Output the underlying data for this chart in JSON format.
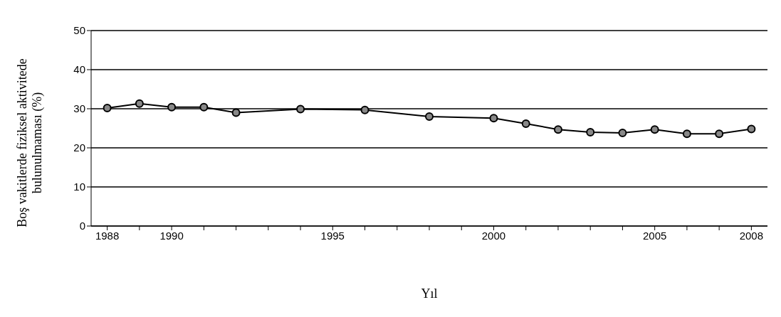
{
  "chart_data": {
    "type": "line",
    "xlabel": "Yıl",
    "ylabel": "Boş vakitlerde fiziksel aktivitede bulunulmaması (%)",
    "x": [
      1988,
      1989,
      1990,
      1991,
      1992,
      1994,
      1996,
      1998,
      2000,
      2001,
      2002,
      2003,
      2004,
      2005,
      2006,
      2007,
      2008
    ],
    "series": [
      {
        "color": "#000000",
        "values": [
          30.2,
          31.3,
          30.4,
          30.4,
          29.0,
          29.9,
          29.7,
          28.0,
          27.6,
          26.2,
          24.7,
          24.0,
          23.8,
          24.7,
          23.6,
          23.6,
          24.8
        ]
      }
    ],
    "xlim": [
      1987.5,
      2008.5
    ],
    "xticks": [
      1988,
      {
        "value": 1989,
        "label": null
      },
      1990,
      {
        "value": 1991,
        "label": null
      },
      {
        "value": 1992,
        "label": null
      },
      {
        "value": 1993,
        "label": null
      },
      {
        "value": 1994,
        "label": null
      },
      1995,
      {
        "value": 1996,
        "label": null
      },
      {
        "value": 1997,
        "label": null
      },
      {
        "value": 1998,
        "label": null
      },
      {
        "value": 1999,
        "label": null
      },
      2000,
      {
        "value": 2001,
        "label": null
      },
      {
        "value": 2002,
        "label": null
      },
      {
        "value": 2003,
        "label": null
      },
      {
        "value": 2004,
        "label": null
      },
      2005,
      {
        "value": 2006,
        "label": null
      },
      {
        "value": 2007,
        "label": null
      },
      2008
    ],
    "ylim": [
      0,
      50
    ],
    "yticks": [
      0,
      10,
      20,
      30,
      40,
      50
    ],
    "grid": "y",
    "marker": "circle",
    "line_style": "solid"
  }
}
